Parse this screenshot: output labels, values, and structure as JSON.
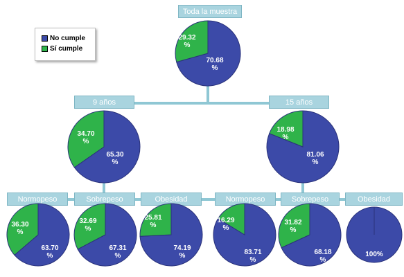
{
  "colors": {
    "no_cumple": "#3c4aa8",
    "si_cumple": "#2fb34a",
    "header_bg": "#a9d4df",
    "connector": "#8fc7d4",
    "pie_stroke": "#2a327a"
  },
  "legend": {
    "items": [
      {
        "label": "No cumple",
        "color": "#3c4aa8"
      },
      {
        "label": "Sí cumple",
        "color": "#2fb34a"
      }
    ]
  },
  "chart_data": [
    {
      "type": "pie",
      "title": "Toda la muestra",
      "labels": [
        "No cumple",
        "Sí cumple"
      ],
      "values": [
        70.68,
        29.32
      ],
      "value_labels": [
        "70.68\n%",
        "29.32\n%"
      ]
    },
    {
      "type": "pie",
      "title": "9 años",
      "labels": [
        "No cumple",
        "Sí cumple"
      ],
      "values": [
        65.3,
        34.7
      ],
      "value_labels": [
        "65.30\n%",
        "34.70\n%"
      ]
    },
    {
      "type": "pie",
      "title": "15 años",
      "labels": [
        "No cumple",
        "Sí cumple"
      ],
      "values": [
        81.06,
        18.98
      ],
      "value_labels": [
        "81.06\n%",
        "18.98\n%"
      ]
    },
    {
      "type": "pie",
      "title": "Normopeso",
      "labels": [
        "No cumple",
        "Sí cumple"
      ],
      "values": [
        63.7,
        36.3
      ],
      "value_labels": [
        "63.70\n%",
        "36.30\n%"
      ]
    },
    {
      "type": "pie",
      "title": "Sobrepeso",
      "labels": [
        "No cumple",
        "Sí cumple"
      ],
      "values": [
        67.31,
        32.69
      ],
      "value_labels": [
        "67.31\n%",
        "32.69\n%"
      ]
    },
    {
      "type": "pie",
      "title": "Obesidad",
      "labels": [
        "No cumple",
        "Sí cumple"
      ],
      "values": [
        74.19,
        25.81
      ],
      "value_labels": [
        "74.19\n%",
        "25.81\n%"
      ]
    },
    {
      "type": "pie",
      "title": "Normopeso",
      "labels": [
        "No cumple",
        "Sí cumple"
      ],
      "values": [
        83.71,
        16.29
      ],
      "value_labels": [
        "83.71\n%",
        "16.29\n%"
      ]
    },
    {
      "type": "pie",
      "title": "Sobrepeso",
      "labels": [
        "No cumple",
        "Sí cumple"
      ],
      "values": [
        68.18,
        31.82
      ],
      "value_labels": [
        "68.18\n%",
        "31.82\n%"
      ]
    },
    {
      "type": "pie",
      "title": "Obesidad",
      "labels": [
        "No cumple"
      ],
      "values": [
        100
      ],
      "value_labels": [
        "100%"
      ]
    }
  ]
}
